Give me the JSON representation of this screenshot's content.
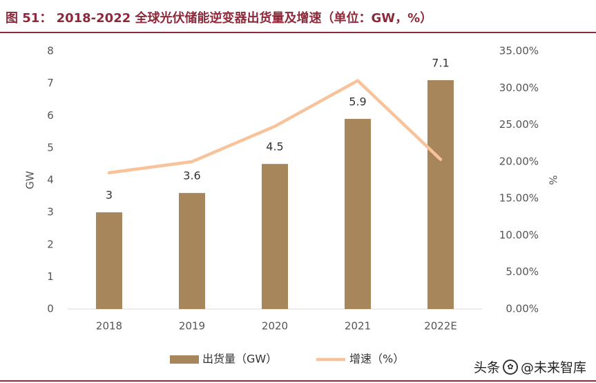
{
  "title": "图 51：  2018-2022 全球光伏储能逆变器出货量及增速（单位：GW，%）",
  "watermark": {
    "brand": "头条",
    "handle": "@未来智库"
  },
  "colors": {
    "bar": "#a6865a",
    "line": "#f8c39a",
    "title": "#8c2a3b",
    "axis_text": "#555555"
  },
  "chart_data": {
    "type": "bar+line",
    "categories": [
      "2018",
      "2019",
      "2020",
      "2021",
      "2022E"
    ],
    "series": [
      {
        "name": "出货量（GW）",
        "type": "bar",
        "axis": "left",
        "values": [
          3,
          3.6,
          4.5,
          5.9,
          7.1
        ],
        "labels": [
          "3",
          "3.6",
          "4.5",
          "5.9",
          "7.1"
        ]
      },
      {
        "name": "增速（%）",
        "type": "line",
        "axis": "right",
        "values": [
          18.5,
          20.0,
          24.8,
          31.0,
          20.3
        ]
      }
    ],
    "y_left": {
      "label": "GW",
      "range": [
        0,
        8
      ],
      "ticks": [
        "0",
        "1",
        "2",
        "3",
        "4",
        "5",
        "6",
        "7",
        "8"
      ]
    },
    "y_right": {
      "label": "%",
      "range": [
        0,
        35
      ],
      "ticks": [
        "0.00%",
        "5.00%",
        "10.00%",
        "15.00%",
        "20.00%",
        "25.00%",
        "30.00%",
        "35.00%"
      ]
    },
    "grid": false,
    "legend_position": "bottom-center"
  }
}
